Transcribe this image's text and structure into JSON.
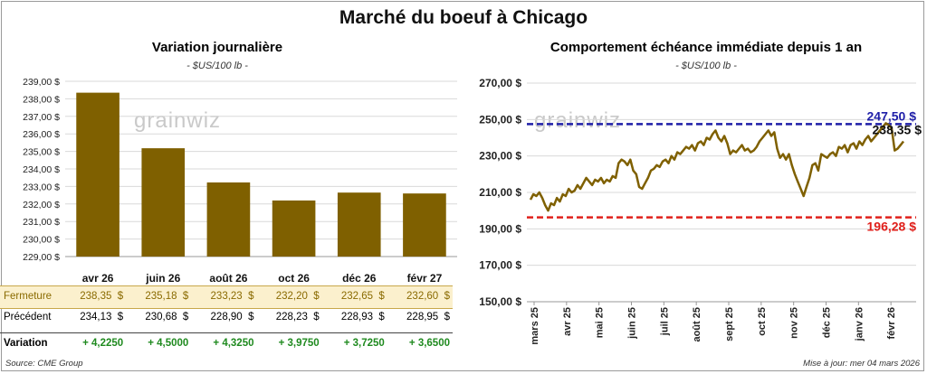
{
  "title": "Marché du boeuf à Chicago",
  "left": {
    "title": "Variation journalière",
    "subtitle": "- $US/100 lb -",
    "watermark": "grainwiz"
  },
  "right": {
    "title": "Comportement échéance immédiate depuis 1 an",
    "subtitle": "- $US/100 lb -",
    "watermark": "grainwiz"
  },
  "chart_data": [
    {
      "type": "bar",
      "categories": [
        "avr 26",
        "juin 26",
        "août 26",
        "oct 26",
        "déc 26",
        "févr 27"
      ],
      "values": [
        238.35,
        235.18,
        233.23,
        232.2,
        232.65,
        232.6
      ],
      "ylim": [
        229,
        239
      ],
      "yticks": [
        "229,00 $",
        "230,00 $",
        "231,00 $",
        "232,00 $",
        "233,00 $",
        "234,00 $",
        "235,00 $",
        "236,00 $",
        "237,00 $",
        "238,00 $",
        "239,00 $"
      ],
      "bar_color": "#7f6000",
      "grid": true
    },
    {
      "type": "line",
      "ylim": [
        150,
        270
      ],
      "yticks": [
        "150,00 $",
        "170,00 $",
        "190,00 $",
        "210,00 $",
        "230,00 $",
        "250,00 $",
        "270,00 $"
      ],
      "xticks": [
        "mars 25",
        "avr 25",
        "mai 25",
        "juin 25",
        "juil 25",
        "août 25",
        "sept 25",
        "oct 25",
        "nov 25",
        "déc 25",
        "janv 26",
        "févr 26"
      ],
      "series": [
        {
          "line_color": "#7f6000",
          "values": [
            206,
            209,
            208,
            210,
            207,
            203,
            200,
            204,
            203,
            207,
            205,
            209,
            208,
            212,
            210,
            211,
            214,
            212,
            215,
            218,
            216,
            214,
            217,
            216,
            218,
            215,
            217,
            216,
            219,
            218,
            226,
            228,
            227,
            225,
            228,
            222,
            220,
            213,
            212,
            215,
            218,
            222,
            223,
            225,
            224,
            227,
            228,
            226,
            230,
            228,
            232,
            231,
            233,
            235,
            234,
            236,
            233,
            237,
            238,
            236,
            240,
            239,
            242,
            244,
            240,
            238,
            241,
            237,
            231,
            233,
            232,
            234,
            236,
            233,
            234,
            232,
            233,
            235,
            238,
            240,
            242,
            244,
            241,
            243,
            234,
            229,
            231,
            228,
            231,
            225,
            220,
            216,
            212,
            208,
            213,
            218,
            225,
            226,
            222,
            231,
            230,
            229,
            231,
            232,
            230,
            235,
            234,
            236,
            232,
            236,
            237,
            234,
            238,
            236,
            239,
            241,
            238,
            240,
            242,
            244,
            246,
            248,
            247,
            245,
            233,
            234,
            236,
            238
          ]
        }
      ],
      "ref_lines": [
        {
          "value": 247.5,
          "label": "247,50 $",
          "color": "#1f1fa8"
        },
        {
          "value": 196.28,
          "label": "196,28 $",
          "color": "#e0201b"
        }
      ],
      "last_label": "238,35 $",
      "grid": true
    }
  ],
  "table": {
    "rows": [
      {
        "label": "Fermeture",
        "cells": [
          "238,35  $",
          "235,18  $",
          "233,23  $",
          "232,20  $",
          "232,65  $",
          "232,60  $"
        ]
      },
      {
        "label": "Précédent",
        "cells": [
          "234,13  $",
          "230,68  $",
          "228,90  $",
          "228,23  $",
          "228,93  $",
          "228,95  $"
        ]
      },
      {
        "label": "Variation",
        "cells": [
          "+ 4,2250",
          "+ 4,5000",
          "+ 4,3250",
          "+ 3,9750",
          "+ 3,7250",
          "+ 3,6500"
        ]
      }
    ]
  },
  "source": "Source: CME Group",
  "update": "Mise à jour: mer 04 mars 2026"
}
